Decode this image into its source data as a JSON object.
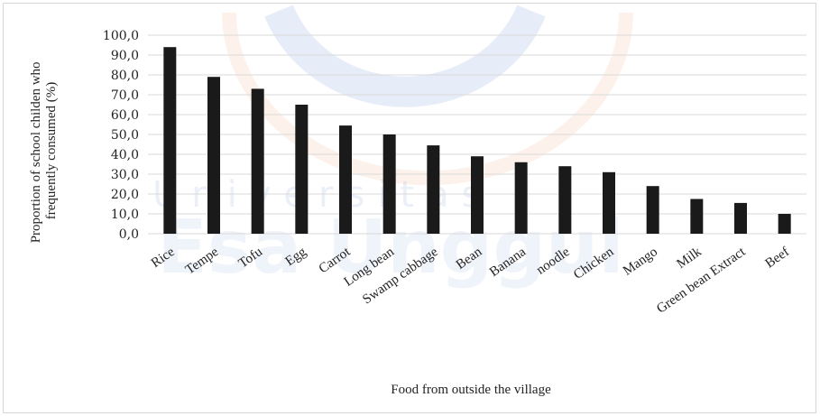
{
  "watermark": {
    "line1": "Universitas",
    "line2": "Esa Unggul",
    "blue": "#3d6fc4",
    "orange": "#f0a070"
  },
  "colors": {
    "bar": "#1a1a1a",
    "grid": "#d9d9d9"
  },
  "chart_data": {
    "type": "bar",
    "title": "",
    "xlabel": "Food from outside the village",
    "ylabel_lines": [
      "Proportion of school childen who",
      "frequently consumed (%)"
    ],
    "categories": [
      "Rice",
      "Tempe",
      "Tofu",
      "Egg",
      "Carrot",
      "Long bean",
      "Swamp cabbage",
      "Bean",
      "Banana",
      "noodle",
      "Chicken",
      "Mango",
      "Milk",
      "Green bean Extract",
      "Beef"
    ],
    "values": [
      94.0,
      79.0,
      73.0,
      65.0,
      54.5,
      50.0,
      44.5,
      39.0,
      36.0,
      34.0,
      31.0,
      24.0,
      17.5,
      15.5,
      10.0
    ],
    "ylim": [
      0,
      100
    ],
    "yticks": [
      "0,0",
      "10,0",
      "20,0",
      "30,0",
      "40,0",
      "50,0",
      "60,0",
      "70,0",
      "80,0",
      "90,0",
      "100,0"
    ],
    "grid": true,
    "legend": "none"
  }
}
